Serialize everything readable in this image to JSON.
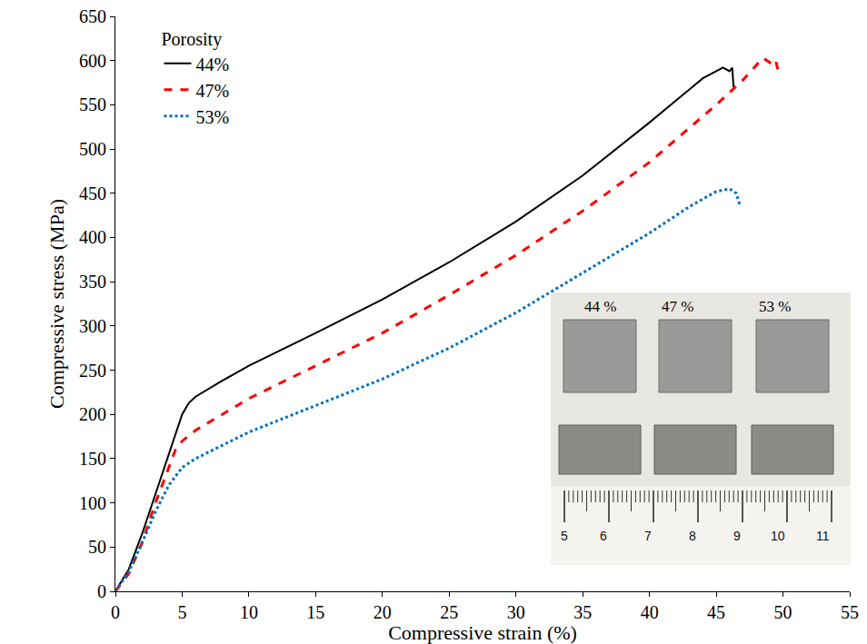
{
  "chart_data": {
    "type": "line",
    "x_label": "Compressive strain (%)",
    "y_label": "Compressive stress (MPa)",
    "legend_title": "Porosity",
    "legend": "top-left",
    "grid": false,
    "xlim": [
      0,
      55
    ],
    "xticks": [
      0,
      5,
      10,
      15,
      20,
      25,
      30,
      35,
      40,
      45,
      50,
      55
    ],
    "ylim": [
      0,
      650
    ],
    "yticks": [
      0,
      50,
      100,
      150,
      200,
      250,
      300,
      350,
      400,
      450,
      500,
      550,
      600,
      650
    ],
    "series": [
      {
        "name": "44%",
        "color": "#000000",
        "line_style": "solid",
        "x": [
          0,
          1,
          2,
          3,
          4,
          5,
          5.5,
          6,
          8,
          10,
          15,
          20,
          25,
          30,
          35,
          40,
          42,
          44,
          45,
          45.5,
          46,
          46.2,
          46.3
        ],
        "values": [
          0,
          25,
          65,
          110,
          155,
          200,
          213,
          220,
          238,
          255,
          292,
          330,
          372,
          418,
          470,
          530,
          555,
          580,
          588,
          592,
          588,
          592,
          570
        ]
      },
      {
        "name": "47%",
        "color": "#ff0000",
        "line_style": "dash",
        "x": [
          0,
          1,
          2,
          3,
          4,
          4.5,
          5,
          6,
          8,
          10,
          15,
          20,
          25,
          30,
          35,
          40,
          45,
          47,
          48.5,
          49,
          49.3,
          49.5,
          49.6
        ],
        "values": [
          0,
          20,
          55,
          100,
          140,
          160,
          170,
          182,
          200,
          218,
          255,
          292,
          335,
          380,
          430,
          485,
          550,
          578,
          603,
          598,
          593,
          598,
          590
        ]
      },
      {
        "name": "53%",
        "color": "#0070c0",
        "line_style": "dot",
        "x": [
          0,
          1,
          2,
          3,
          4,
          5,
          6,
          8,
          10,
          15,
          20,
          25,
          30,
          35,
          40,
          43,
          45,
          46,
          46.5,
          46.8
        ],
        "values": [
          0,
          22,
          55,
          90,
          120,
          140,
          150,
          165,
          180,
          210,
          240,
          275,
          315,
          360,
          405,
          435,
          452,
          455,
          450,
          435
        ]
      }
    ],
    "inset": {
      "samples": [
        "44 %",
        "47 %",
        "53 %"
      ],
      "ruler": [
        5,
        6,
        7,
        8,
        9,
        10,
        11
      ]
    }
  }
}
